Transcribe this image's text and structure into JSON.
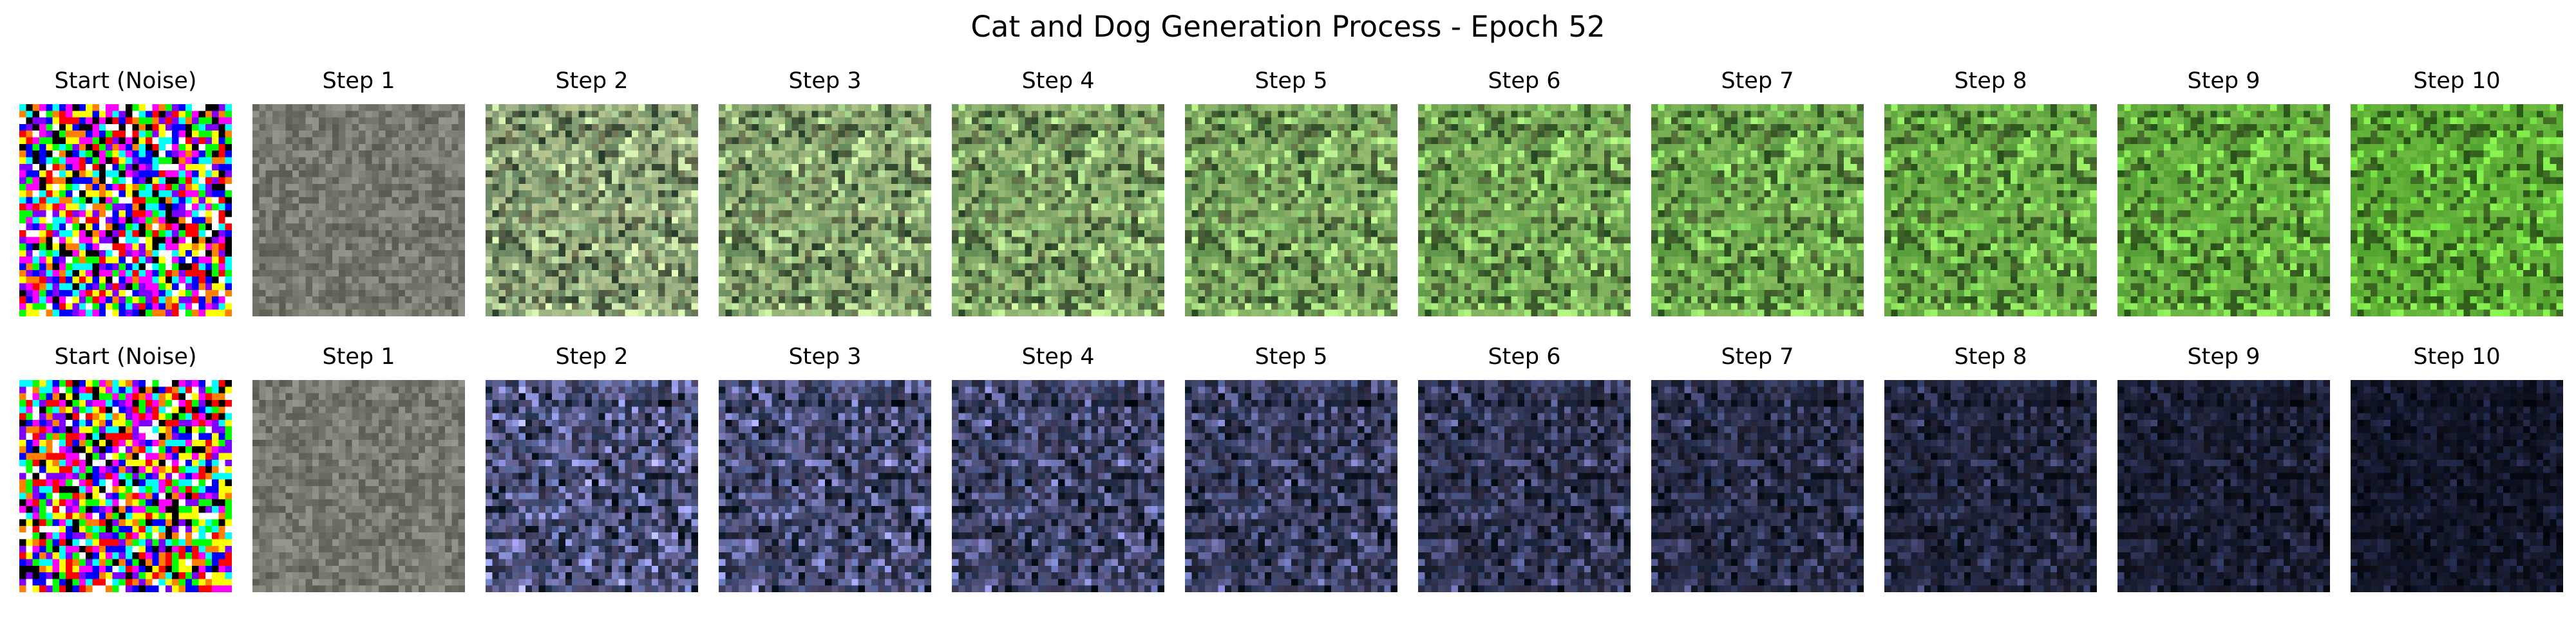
{
  "figure": {
    "title": "Cat and Dog Generation Process - Epoch 52"
  },
  "rows": [
    {
      "panels": [
        {
          "title": "Start (Noise)",
          "kind": "noise",
          "t": 0
        },
        {
          "title": "Step 1",
          "kind": "grass",
          "t": 0
        },
        {
          "title": "Step 2",
          "kind": "grass",
          "t": 0.11
        },
        {
          "title": "Step 3",
          "kind": "grass",
          "t": 0.22
        },
        {
          "title": "Step 4",
          "kind": "grass",
          "t": 0.33
        },
        {
          "title": "Step 5",
          "kind": "grass",
          "t": 0.44
        },
        {
          "title": "Step 6",
          "kind": "grass",
          "t": 0.56
        },
        {
          "title": "Step 7",
          "kind": "grass",
          "t": 0.67
        },
        {
          "title": "Step 8",
          "kind": "grass",
          "t": 0.78
        },
        {
          "title": "Step 9",
          "kind": "grass",
          "t": 0.89
        },
        {
          "title": "Step 10",
          "kind": "grass",
          "t": 1
        }
      ]
    },
    {
      "panels": [
        {
          "title": "Start (Noise)",
          "kind": "noise",
          "t": 0
        },
        {
          "title": "Step 1",
          "kind": "dark",
          "t": 0
        },
        {
          "title": "Step 2",
          "kind": "dark",
          "t": 0.11
        },
        {
          "title": "Step 3",
          "kind": "dark",
          "t": 0.22
        },
        {
          "title": "Step 4",
          "kind": "dark",
          "t": 0.33
        },
        {
          "title": "Step 5",
          "kind": "dark",
          "t": 0.44
        },
        {
          "title": "Step 6",
          "kind": "dark",
          "t": 0.56
        },
        {
          "title": "Step 7",
          "kind": "dark",
          "t": 0.67
        },
        {
          "title": "Step 8",
          "kind": "dark",
          "t": 0.78
        },
        {
          "title": "Step 9",
          "kind": "dark",
          "t": 0.89
        },
        {
          "title": "Step 10",
          "kind": "dark",
          "t": 1
        }
      ]
    }
  ]
}
